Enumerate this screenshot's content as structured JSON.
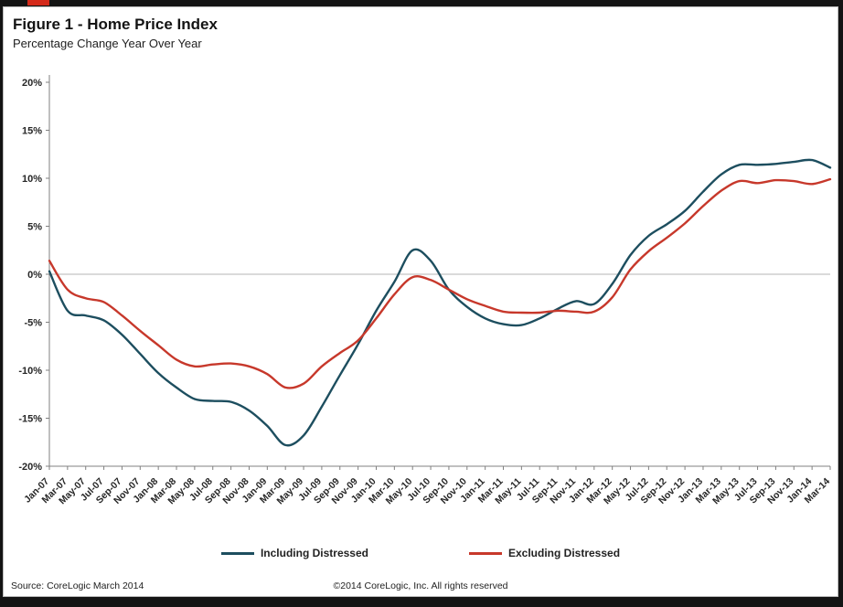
{
  "header": {
    "title": "Figure 1 - Home Price Index",
    "subtitle": "Percentage Change Year Over Year"
  },
  "chart_data": {
    "type": "line",
    "title": "Figure 1 - Home Price Index",
    "subtitle": "Percentage Change Year Over Year",
    "xlabel": "",
    "ylabel": "",
    "ylim": [
      -20,
      20
    ],
    "ytick_step": 5,
    "ytick_labels": [
      "20%",
      "15%",
      "10%",
      "5%",
      "0%",
      "-5%",
      "-10%",
      "-15%",
      "-20%"
    ],
    "grid": "zero-line-only",
    "legend_position": "bottom",
    "categories": [
      "Jan-07",
      "Mar-07",
      "May-07",
      "Jul-07",
      "Sep-07",
      "Nov-07",
      "Jan-08",
      "Mar-08",
      "May-08",
      "Jul-08",
      "Sep-08",
      "Nov-08",
      "Jan-09",
      "Mar-09",
      "May-09",
      "Jul-09",
      "Sep-09",
      "Nov-09",
      "Jan-10",
      "Mar-10",
      "May-10",
      "Jul-10",
      "Sep-10",
      "Nov-10",
      "Jan-11",
      "Mar-11",
      "May-11",
      "Jul-11",
      "Sep-11",
      "Nov-11",
      "Jan-12",
      "Mar-12",
      "May-12",
      "Jul-12",
      "Sep-12",
      "Nov-12",
      "Jan-13",
      "Mar-13",
      "May-13",
      "Jul-13",
      "Sep-13",
      "Nov-13",
      "Jan-14",
      "Mar-14"
    ],
    "series": [
      {
        "name": "Including Distressed",
        "color": "#1d4e5f",
        "values": [
          0.3,
          -3.8,
          -4.3,
          -4.8,
          -6.3,
          -8.3,
          -10.3,
          -11.8,
          -13.0,
          -13.2,
          -13.3,
          -14.2,
          -15.8,
          -17.8,
          -16.8,
          -13.8,
          -10.5,
          -7.3,
          -3.8,
          -0.8,
          2.5,
          1.4,
          -1.6,
          -3.4,
          -4.6,
          -5.2,
          -5.3,
          -4.6,
          -3.6,
          -2.8,
          -3.1,
          -1.0,
          2.0,
          4.0,
          5.2,
          6.6,
          8.6,
          10.4,
          11.4,
          11.4,
          11.5,
          11.7,
          11.9,
          11.1
        ]
      },
      {
        "name": "Excluding Distressed",
        "color": "#c7382b",
        "values": [
          1.4,
          -1.6,
          -2.5,
          -2.9,
          -4.3,
          -5.9,
          -7.4,
          -8.9,
          -9.6,
          -9.4,
          -9.3,
          -9.6,
          -10.4,
          -11.8,
          -11.4,
          -9.6,
          -8.2,
          -6.9,
          -4.6,
          -2.1,
          -0.3,
          -0.6,
          -1.6,
          -2.6,
          -3.3,
          -3.9,
          -4.0,
          -4.0,
          -3.8,
          -3.9,
          -3.9,
          -2.4,
          0.5,
          2.4,
          3.8,
          5.3,
          7.1,
          8.7,
          9.7,
          9.5,
          9.8,
          9.7,
          9.4,
          9.9
        ]
      }
    ]
  },
  "footer": {
    "source": "Source: CoreLogic  March 2014",
    "copyright": "©2014 CoreLogic, Inc. All rights reserved"
  }
}
